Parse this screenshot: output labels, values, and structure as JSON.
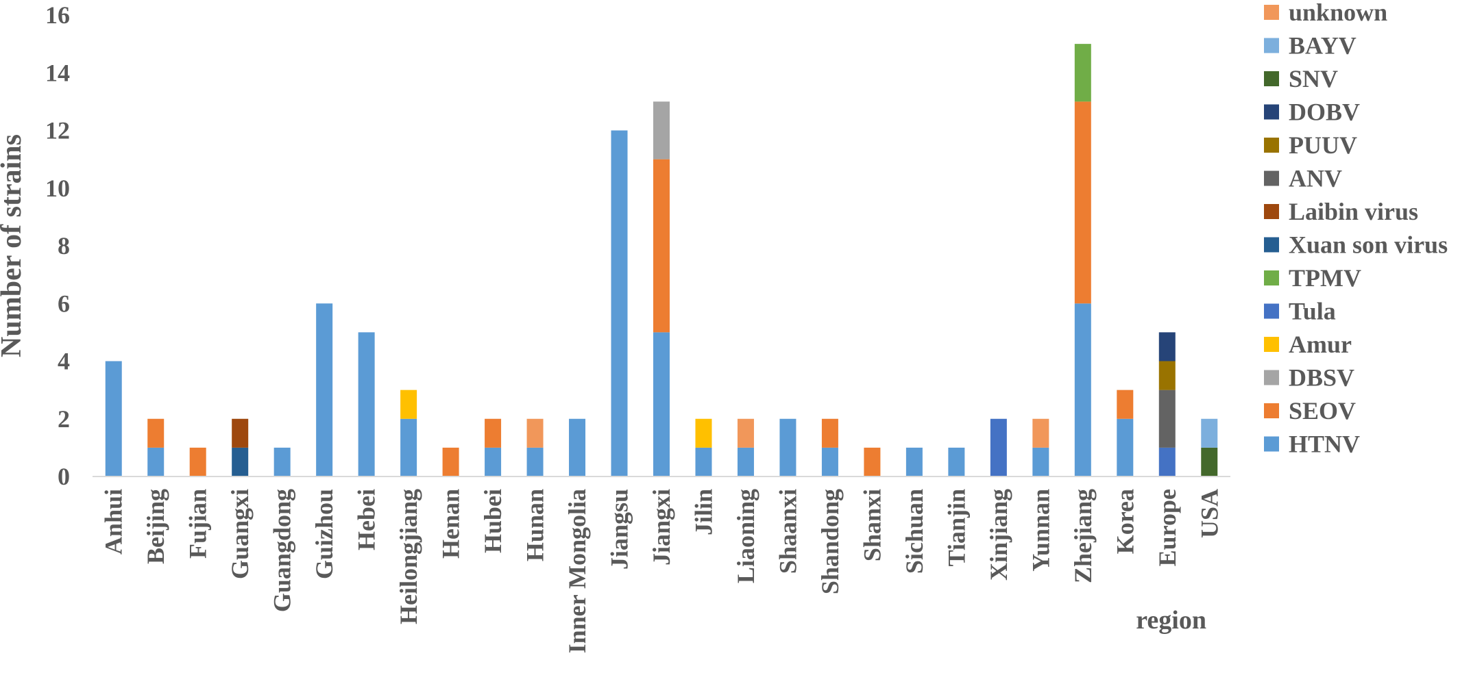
{
  "chart_data": {
    "type": "bar",
    "stacked": true,
    "title": "",
    "xlabel": "region",
    "ylabel": "Number of strains",
    "ylim": [
      0,
      16
    ],
    "yticks": [
      0,
      2,
      4,
      6,
      8,
      10,
      12,
      14,
      16
    ],
    "grid": false,
    "legend_position": "right",
    "categories": [
      "Anhui",
      "Beijing",
      "Fujian",
      "Guangxi",
      "Guangdong",
      "Guizhou",
      "Hebei",
      "Heilongjiang",
      "Henan",
      "Hubei",
      "Hunan",
      "Inner Mongolia",
      "Jiangsu",
      "Jiangxi",
      "Jilin",
      "Liaoning",
      "Shaanxi",
      "Shandong",
      "Shanxi",
      "Sichuan",
      "Tianjin",
      "Xinjiang",
      "Yunnan",
      "Zhejiang",
      "Korea",
      "Europe",
      "USA"
    ],
    "series": [
      {
        "name": "HTNV",
        "color": "#5b9bd5",
        "values": [
          4,
          1,
          0,
          0,
          1,
          6,
          5,
          2,
          0,
          1,
          1,
          2,
          12,
          5,
          1,
          1,
          2,
          1,
          0,
          1,
          1,
          0,
          1,
          6,
          2,
          0,
          0
        ]
      },
      {
        "name": "SEOV",
        "color": "#ed7d31",
        "values": [
          0,
          1,
          1,
          0,
          0,
          0,
          0,
          0,
          1,
          1,
          0,
          0,
          0,
          6,
          0,
          0,
          0,
          1,
          1,
          0,
          0,
          0,
          0,
          7,
          1,
          0,
          0
        ]
      },
      {
        "name": "DBSV",
        "color": "#a5a5a5",
        "values": [
          0,
          0,
          0,
          0,
          0,
          0,
          0,
          0,
          0,
          0,
          0,
          0,
          0,
          2,
          0,
          0,
          0,
          0,
          0,
          0,
          0,
          0,
          0,
          0,
          0,
          0,
          0
        ]
      },
      {
        "name": "Amur",
        "color": "#ffc000",
        "values": [
          0,
          0,
          0,
          0,
          0,
          0,
          0,
          1,
          0,
          0,
          0,
          0,
          0,
          0,
          1,
          0,
          0,
          0,
          0,
          0,
          0,
          0,
          0,
          0,
          0,
          0,
          0
        ]
      },
      {
        "name": "Tula",
        "color": "#4472c4",
        "values": [
          0,
          0,
          0,
          0,
          0,
          0,
          0,
          0,
          0,
          0,
          0,
          0,
          0,
          0,
          0,
          0,
          0,
          0,
          0,
          0,
          0,
          2,
          0,
          0,
          0,
          1,
          0
        ]
      },
      {
        "name": "TPMV",
        "color": "#70ad47",
        "values": [
          0,
          0,
          0,
          0,
          0,
          0,
          0,
          0,
          0,
          0,
          0,
          0,
          0,
          0,
          0,
          0,
          0,
          0,
          0,
          0,
          0,
          0,
          0,
          2,
          0,
          0,
          0
        ]
      },
      {
        "name": "Xuan son virus",
        "color": "#255e91",
        "values": [
          0,
          0,
          0,
          1,
          0,
          0,
          0,
          0,
          0,
          0,
          0,
          0,
          0,
          0,
          0,
          0,
          0,
          0,
          0,
          0,
          0,
          0,
          0,
          0,
          0,
          0,
          0
        ]
      },
      {
        "name": "Laibin virus",
        "color": "#9e480e",
        "values": [
          0,
          0,
          0,
          1,
          0,
          0,
          0,
          0,
          0,
          0,
          0,
          0,
          0,
          0,
          0,
          0,
          0,
          0,
          0,
          0,
          0,
          0,
          0,
          0,
          0,
          0,
          0
        ]
      },
      {
        "name": "ANV",
        "color": "#636363",
        "values": [
          0,
          0,
          0,
          0,
          0,
          0,
          0,
          0,
          0,
          0,
          0,
          0,
          0,
          0,
          0,
          0,
          0,
          0,
          0,
          0,
          0,
          0,
          0,
          0,
          0,
          2,
          0
        ]
      },
      {
        "name": "PUUV",
        "color": "#997300",
        "values": [
          0,
          0,
          0,
          0,
          0,
          0,
          0,
          0,
          0,
          0,
          0,
          0,
          0,
          0,
          0,
          0,
          0,
          0,
          0,
          0,
          0,
          0,
          0,
          0,
          0,
          1,
          0
        ]
      },
      {
        "name": "DOBV",
        "color": "#264478",
        "values": [
          0,
          0,
          0,
          0,
          0,
          0,
          0,
          0,
          0,
          0,
          0,
          0,
          0,
          0,
          0,
          0,
          0,
          0,
          0,
          0,
          0,
          0,
          0,
          0,
          0,
          1,
          0
        ]
      },
      {
        "name": "SNV",
        "color": "#43682b",
        "values": [
          0,
          0,
          0,
          0,
          0,
          0,
          0,
          0,
          0,
          0,
          0,
          0,
          0,
          0,
          0,
          0,
          0,
          0,
          0,
          0,
          0,
          0,
          0,
          0,
          0,
          0,
          1
        ]
      },
      {
        "name": "BAYV",
        "color": "#7cafdd",
        "values": [
          0,
          0,
          0,
          0,
          0,
          0,
          0,
          0,
          0,
          0,
          0,
          0,
          0,
          0,
          0,
          0,
          0,
          0,
          0,
          0,
          0,
          0,
          0,
          0,
          0,
          0,
          1
        ]
      },
      {
        "name": "unknown",
        "color": "#f1975a",
        "values": [
          0,
          0,
          0,
          0,
          0,
          0,
          0,
          0,
          0,
          0,
          1,
          0,
          0,
          0,
          0,
          1,
          0,
          0,
          0,
          0,
          0,
          0,
          1,
          0,
          0,
          0,
          0
        ]
      }
    ],
    "legend_order": [
      "unknown",
      "BAYV",
      "SNV",
      "DOBV",
      "PUUV",
      "ANV",
      "Laibin virus",
      "Xuan son virus",
      "TPMV",
      "Tula",
      "Amur",
      "DBSV",
      "SEOV",
      "HTNV"
    ]
  }
}
